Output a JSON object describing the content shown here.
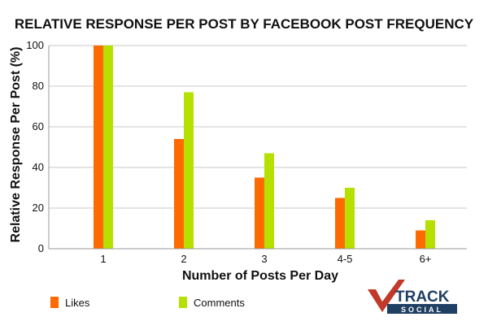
{
  "chart_data": {
    "type": "bar",
    "title": "RELATIVE RESPONSE PER POST BY FACEBOOK POST FREQUENCY",
    "xlabel": "Number of Posts Per Day",
    "ylabel": "Relative Response Per Post (%)",
    "categories": [
      "1",
      "2",
      "3",
      "4-5",
      "6+"
    ],
    "ylim": [
      0,
      100
    ],
    "yticks": [
      "0",
      "20",
      "40",
      "60",
      "80",
      "100"
    ],
    "grid": true,
    "legend_position": "bottom-left",
    "series": [
      {
        "name": "Likes",
        "color": "#ff6a00",
        "values": [
          100,
          54,
          35,
          25,
          9
        ]
      },
      {
        "name": "Comments",
        "color": "#b5e000",
        "values": [
          100,
          77,
          47,
          30,
          14
        ]
      }
    ]
  },
  "logo": {
    "word1": "TRACK",
    "word2": "SOCIAL",
    "mark_color": "#c0392b",
    "text_color": "#1f3f63"
  }
}
